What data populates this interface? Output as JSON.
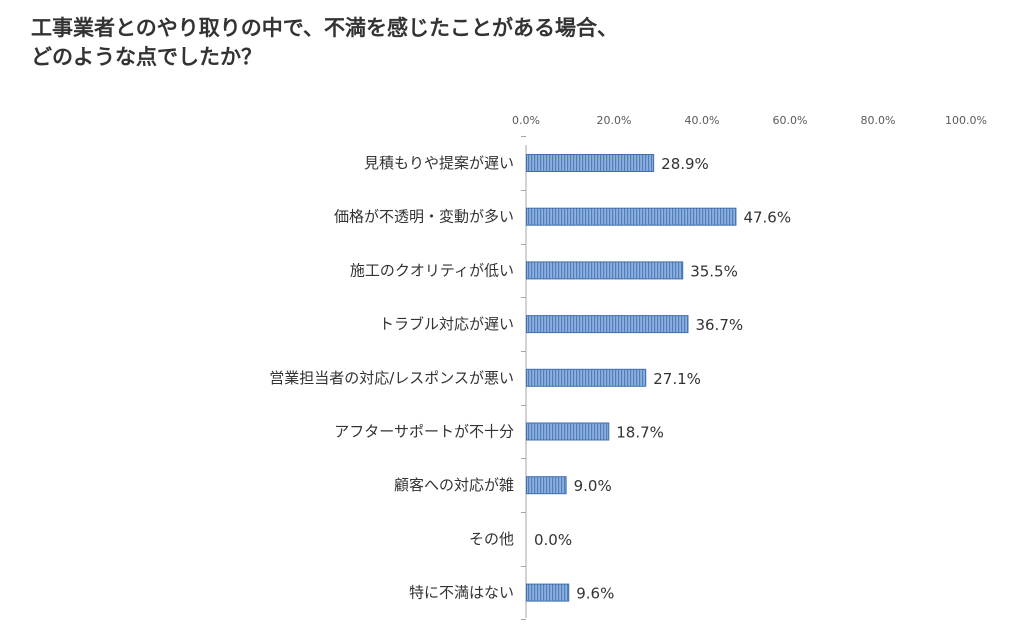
{
  "title": {
    "line1": "工事業者とのやり取りの中で、不満を感じたことがある場合、",
    "line2": "どのような点でしたか？"
  },
  "colors": {
    "bar_fill": "#8fb0dc",
    "bar_stripe": "#4f7fbf",
    "bar_border": "#3f6fae",
    "axis": "#a6a6a6"
  },
  "chart_data": {
    "type": "bar",
    "orientation": "horizontal",
    "title": "工事業者とのやり取りの中で、不満を感じたことがある場合、どのような点でしたか？",
    "xlabel": "",
    "ylabel": "",
    "xlim": [
      0,
      100
    ],
    "ticks": [
      "0.0%",
      "20.0%",
      "40.0%",
      "60.0%",
      "80.0%",
      "100.0%"
    ],
    "tick_values": [
      0,
      20,
      40,
      60,
      80,
      100
    ],
    "grid": false,
    "legend": "none",
    "categories": [
      "見積もりや提案が遅い",
      "価格が不透明・変動が多い",
      "施工のクオリティが低い",
      "トラブル対応が遅い",
      "営業担当者の対応/レスポンスが悪い",
      "アフターサポートが不十分",
      "顧客への対応が雑",
      "その他",
      "特に不満はない"
    ],
    "values": [
      28.9,
      47.6,
      35.5,
      36.7,
      27.1,
      18.7,
      9.0,
      0.0,
      9.6
    ],
    "value_labels": [
      "28.9%",
      "47.6%",
      "35.5%",
      "36.7%",
      "27.1%",
      "18.7%",
      "9.0%",
      "0.0%",
      "9.6%"
    ]
  }
}
